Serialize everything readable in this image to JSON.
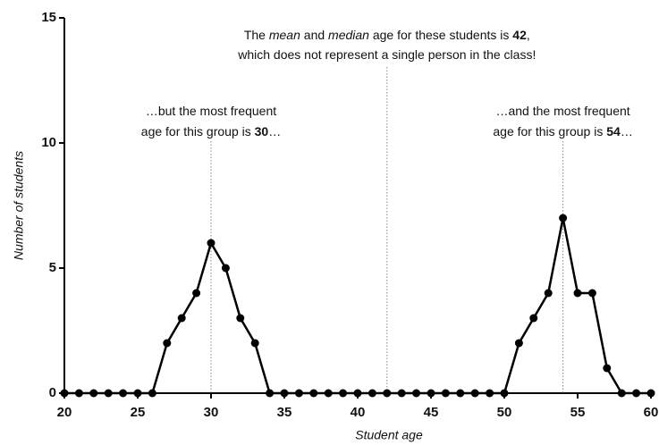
{
  "chart_data": {
    "type": "line",
    "x_label": "Student age",
    "y_label": "Number of students",
    "x": [
      20,
      21,
      22,
      23,
      24,
      25,
      26,
      27,
      28,
      29,
      30,
      31,
      32,
      33,
      34,
      35,
      36,
      37,
      38,
      39,
      40,
      41,
      42,
      43,
      44,
      45,
      46,
      47,
      48,
      49,
      50,
      51,
      52,
      53,
      54,
      55,
      56,
      57,
      58,
      59,
      60
    ],
    "series": [
      {
        "color": "#000000",
        "values": [
          0,
          0,
          0,
          0,
          0,
          0,
          0,
          2,
          3,
          4,
          6,
          5,
          3,
          2,
          0,
          0,
          0,
          0,
          0,
          0,
          0,
          0,
          0,
          0,
          0,
          0,
          0,
          0,
          0,
          0,
          0,
          2,
          3,
          4,
          7,
          4,
          4,
          1,
          0,
          0,
          0
        ]
      }
    ],
    "xlim": [
      20,
      60
    ],
    "xticks": [
      20,
      25,
      30,
      35,
      40,
      45,
      50,
      55,
      60
    ],
    "ylim": [
      0,
      15
    ],
    "yticks": [
      0,
      5,
      10,
      15
    ],
    "annotations": [
      {
        "x": 42,
        "lines": [
          [
            {
              "text": "The "
            },
            {
              "text": "mean",
              "style": "italic"
            },
            {
              "text": " and "
            },
            {
              "text": "median",
              "style": "italic"
            },
            {
              "text": " age for these students is "
            },
            {
              "text": "42",
              "style": "bold"
            },
            {
              "text": ","
            }
          ],
          [
            {
              "text": "which does not represent a single person in the class!"
            }
          ]
        ]
      },
      {
        "x": 30,
        "lines": [
          [
            {
              "text": "…but the most frequent"
            }
          ],
          [
            {
              "text": "age for this group is "
            },
            {
              "text": "30",
              "style": "bold"
            },
            {
              "text": "…"
            }
          ]
        ]
      },
      {
        "x": 54,
        "lines": [
          [
            {
              "text": "…and the most frequent"
            }
          ],
          [
            {
              "text": "age for this group is "
            },
            {
              "text": "54",
              "style": "bold"
            },
            {
              "text": "…"
            }
          ]
        ]
      }
    ]
  }
}
